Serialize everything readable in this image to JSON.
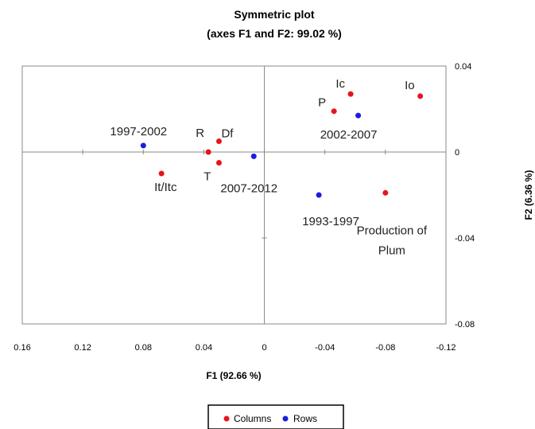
{
  "chart_data": {
    "type": "scatter",
    "title": "Symmetric plot",
    "subtitle": "(axes F1 and F2: 99.02 %)",
    "xlabel": "F1 (92.66 %)",
    "ylabel": "F2 (6.36 %)",
    "xlim": [
      0.16,
      -0.12
    ],
    "ylim": [
      -0.08,
      0.04
    ],
    "x_reversed": true,
    "xticks": [
      {
        "value": 0.16,
        "label": "0.16"
      },
      {
        "value": 0.12,
        "label": "0.12"
      },
      {
        "value": 0.08,
        "label": "0.08"
      },
      {
        "value": 0.04,
        "label": "0.04"
      },
      {
        "value": 0,
        "label": "0"
      },
      {
        "value": -0.04,
        "label": "-0.04"
      },
      {
        "value": -0.08,
        "label": "-0.08"
      },
      {
        "value": -0.12,
        "label": "-0.12"
      }
    ],
    "yticks": [
      {
        "value": 0.04,
        "label": "0.04"
      },
      {
        "value": 0,
        "label": "0"
      },
      {
        "value": -0.04,
        "label": "-0.04"
      },
      {
        "value": -0.08,
        "label": "-0.08"
      }
    ],
    "grid": false,
    "legend_position": "bottom",
    "series": [
      {
        "name": "Columns",
        "color": "#e8141c",
        "points": [
          {
            "label": "Io",
            "x": -0.103,
            "y": 0.026
          },
          {
            "label": "Ic",
            "x": -0.057,
            "y": 0.027
          },
          {
            "label": "P",
            "x": -0.046,
            "y": 0.019
          },
          {
            "label": "Df",
            "x": 0.03,
            "y": 0.005
          },
          {
            "label": "R",
            "x": 0.037,
            "y": 0.0
          },
          {
            "label": "T",
            "x": 0.03,
            "y": -0.005
          },
          {
            "label": "It/Itc",
            "x": 0.068,
            "y": -0.01
          },
          {
            "label": "Production of Plum",
            "x": -0.08,
            "y": -0.019
          }
        ]
      },
      {
        "name": "Rows",
        "color": "#1c1ce0",
        "points": [
          {
            "label": "1997-2002",
            "x": 0.08,
            "y": 0.003
          },
          {
            "label": "2002-2007",
            "x": -0.062,
            "y": 0.017
          },
          {
            "label": "2007-2012",
            "x": 0.007,
            "y": -0.002
          },
          {
            "label": "1993-1997",
            "x": -0.036,
            "y": -0.02
          }
        ]
      }
    ]
  }
}
